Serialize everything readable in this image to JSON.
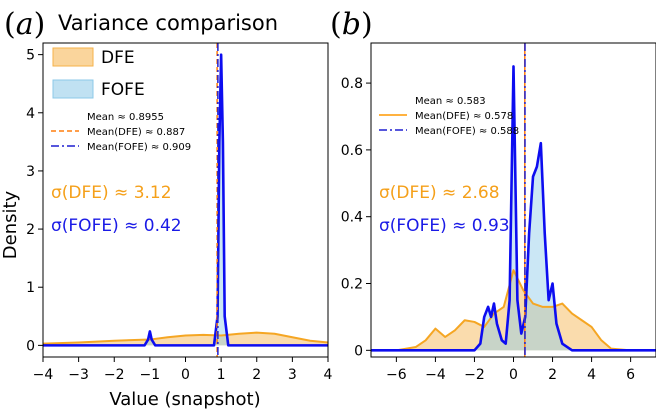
{
  "chart_data": [
    {
      "panel": "(a)",
      "type": "area",
      "title": "Variance comparison",
      "xlabel": "Value (snapshot)",
      "ylabel": "Density",
      "xlim": [
        -4,
        4
      ],
      "ylim": [
        -0.2,
        5.2
      ],
      "x_ticks": [
        "−4",
        "−3",
        "−2",
        "−1",
        "0",
        "1",
        "2",
        "3",
        "4"
      ],
      "y_ticks": [
        "0",
        "1",
        "2",
        "3",
        "4",
        "5"
      ],
      "legend_position": "top-left",
      "legend_fill": [
        {
          "name": "DFE",
          "color": "#f5a623"
        },
        {
          "name": "FOFE",
          "color": "#7ec8e3"
        }
      ],
      "legend_lines": [
        {
          "text": "Mean ≈ 0.8955",
          "style": "none"
        },
        {
          "text": "Mean(DFE) ≈ 0.887",
          "style": "dashed",
          "color": "#ff7f0e"
        },
        {
          "text": "Mean(FOFE) ≈ 0.909",
          "style": "dashdot",
          "color": "#1f1fd0"
        }
      ],
      "annotations": [
        {
          "text": "σ(DFE) ≈ 3.12",
          "color": "#f5a01a"
        },
        {
          "text": "σ(FOFE) ≈ 0.42",
          "color": "#1a1ae6"
        }
      ],
      "mean_lines": {
        "dfe": 0.887,
        "fofe": 0.909
      },
      "series": [
        {
          "name": "DFE",
          "color": "#f5a623",
          "x": [
            -4,
            -3,
            -2,
            -1,
            -0.5,
            0,
            0.5,
            1,
            1.5,
            2,
            2.5,
            3,
            3.5,
            4
          ],
          "y": [
            0.03,
            0.05,
            0.08,
            0.1,
            0.14,
            0.17,
            0.18,
            0.17,
            0.2,
            0.22,
            0.2,
            0.14,
            0.08,
            0.05
          ]
        },
        {
          "name": "FOFE",
          "color": "#0d0df0",
          "x": [
            -4,
            -1.15,
            -1.05,
            -1.0,
            -0.95,
            -0.85,
            0.8,
            0.9,
            0.95,
            1.0,
            1.05,
            1.1,
            1.2,
            4
          ],
          "y": [
            0.0,
            0.0,
            0.1,
            0.24,
            0.1,
            0.0,
            0.0,
            0.5,
            3.5,
            5.0,
            3.5,
            0.5,
            0.0,
            0.0
          ]
        }
      ]
    },
    {
      "panel": "(b)",
      "type": "area",
      "xlim": [
        -7.3,
        7.3
      ],
      "ylim": [
        -0.02,
        0.92
      ],
      "x_ticks": [
        "−6",
        "−4",
        "−2",
        "0",
        "2",
        "4",
        "6"
      ],
      "y_ticks": [
        "0",
        "0.2",
        "0.4",
        "0.6",
        "0.8"
      ],
      "legend_position": "top-left",
      "legend_lines": [
        {
          "text": "Mean ≈ 0.583",
          "style": "none"
        },
        {
          "text": "Mean(DFE) ≈ 0.578",
          "style": "solid",
          "color": "#ff9900"
        },
        {
          "text": "Mean(FOFE) ≈ 0.588",
          "style": "dashdot",
          "color": "#1f1fd0"
        }
      ],
      "annotations": [
        {
          "text": "σ(DFE) ≈ 2.68",
          "color": "#f5a01a"
        },
        {
          "text": "σ(FOFE) ≈ 0.93",
          "color": "#1a1ae6"
        }
      ],
      "mean_lines": {
        "dfe": 0.578,
        "fofe": 0.588
      },
      "series": [
        {
          "name": "DFE",
          "color": "#f5a623",
          "x": [
            -7.3,
            -6,
            -5,
            -4.5,
            -4,
            -3.5,
            -3,
            -2.5,
            -2,
            -1.5,
            -1,
            -0.5,
            0,
            0.5,
            1,
            1.5,
            2,
            2.5,
            3,
            3.5,
            4,
            4.5,
            5,
            6,
            7.3
          ],
          "y": [
            0.0,
            0.0,
            0.01,
            0.03,
            0.065,
            0.04,
            0.06,
            0.09,
            0.085,
            0.07,
            0.11,
            0.13,
            0.24,
            0.18,
            0.14,
            0.13,
            0.13,
            0.14,
            0.11,
            0.09,
            0.07,
            0.03,
            0.005,
            0.0,
            0.0
          ]
        },
        {
          "name": "FOFE",
          "color": "#0d0df0",
          "x": [
            -7.3,
            -2,
            -1.7,
            -1.5,
            -1.3,
            -1.15,
            -1.0,
            -0.85,
            -0.6,
            -0.4,
            -0.2,
            0,
            0.2,
            0.4,
            0.6,
            0.8,
            1.0,
            1.2,
            1.4,
            1.6,
            1.8,
            2.0,
            2.2,
            2.5,
            3,
            7.3
          ],
          "y": [
            0.0,
            0.0,
            0.02,
            0.1,
            0.13,
            0.1,
            0.14,
            0.08,
            0.03,
            0.02,
            0.15,
            0.85,
            0.15,
            0.05,
            0.1,
            0.35,
            0.52,
            0.55,
            0.62,
            0.35,
            0.15,
            0.2,
            0.08,
            0.02,
            0.0,
            0.0
          ]
        }
      ]
    }
  ]
}
